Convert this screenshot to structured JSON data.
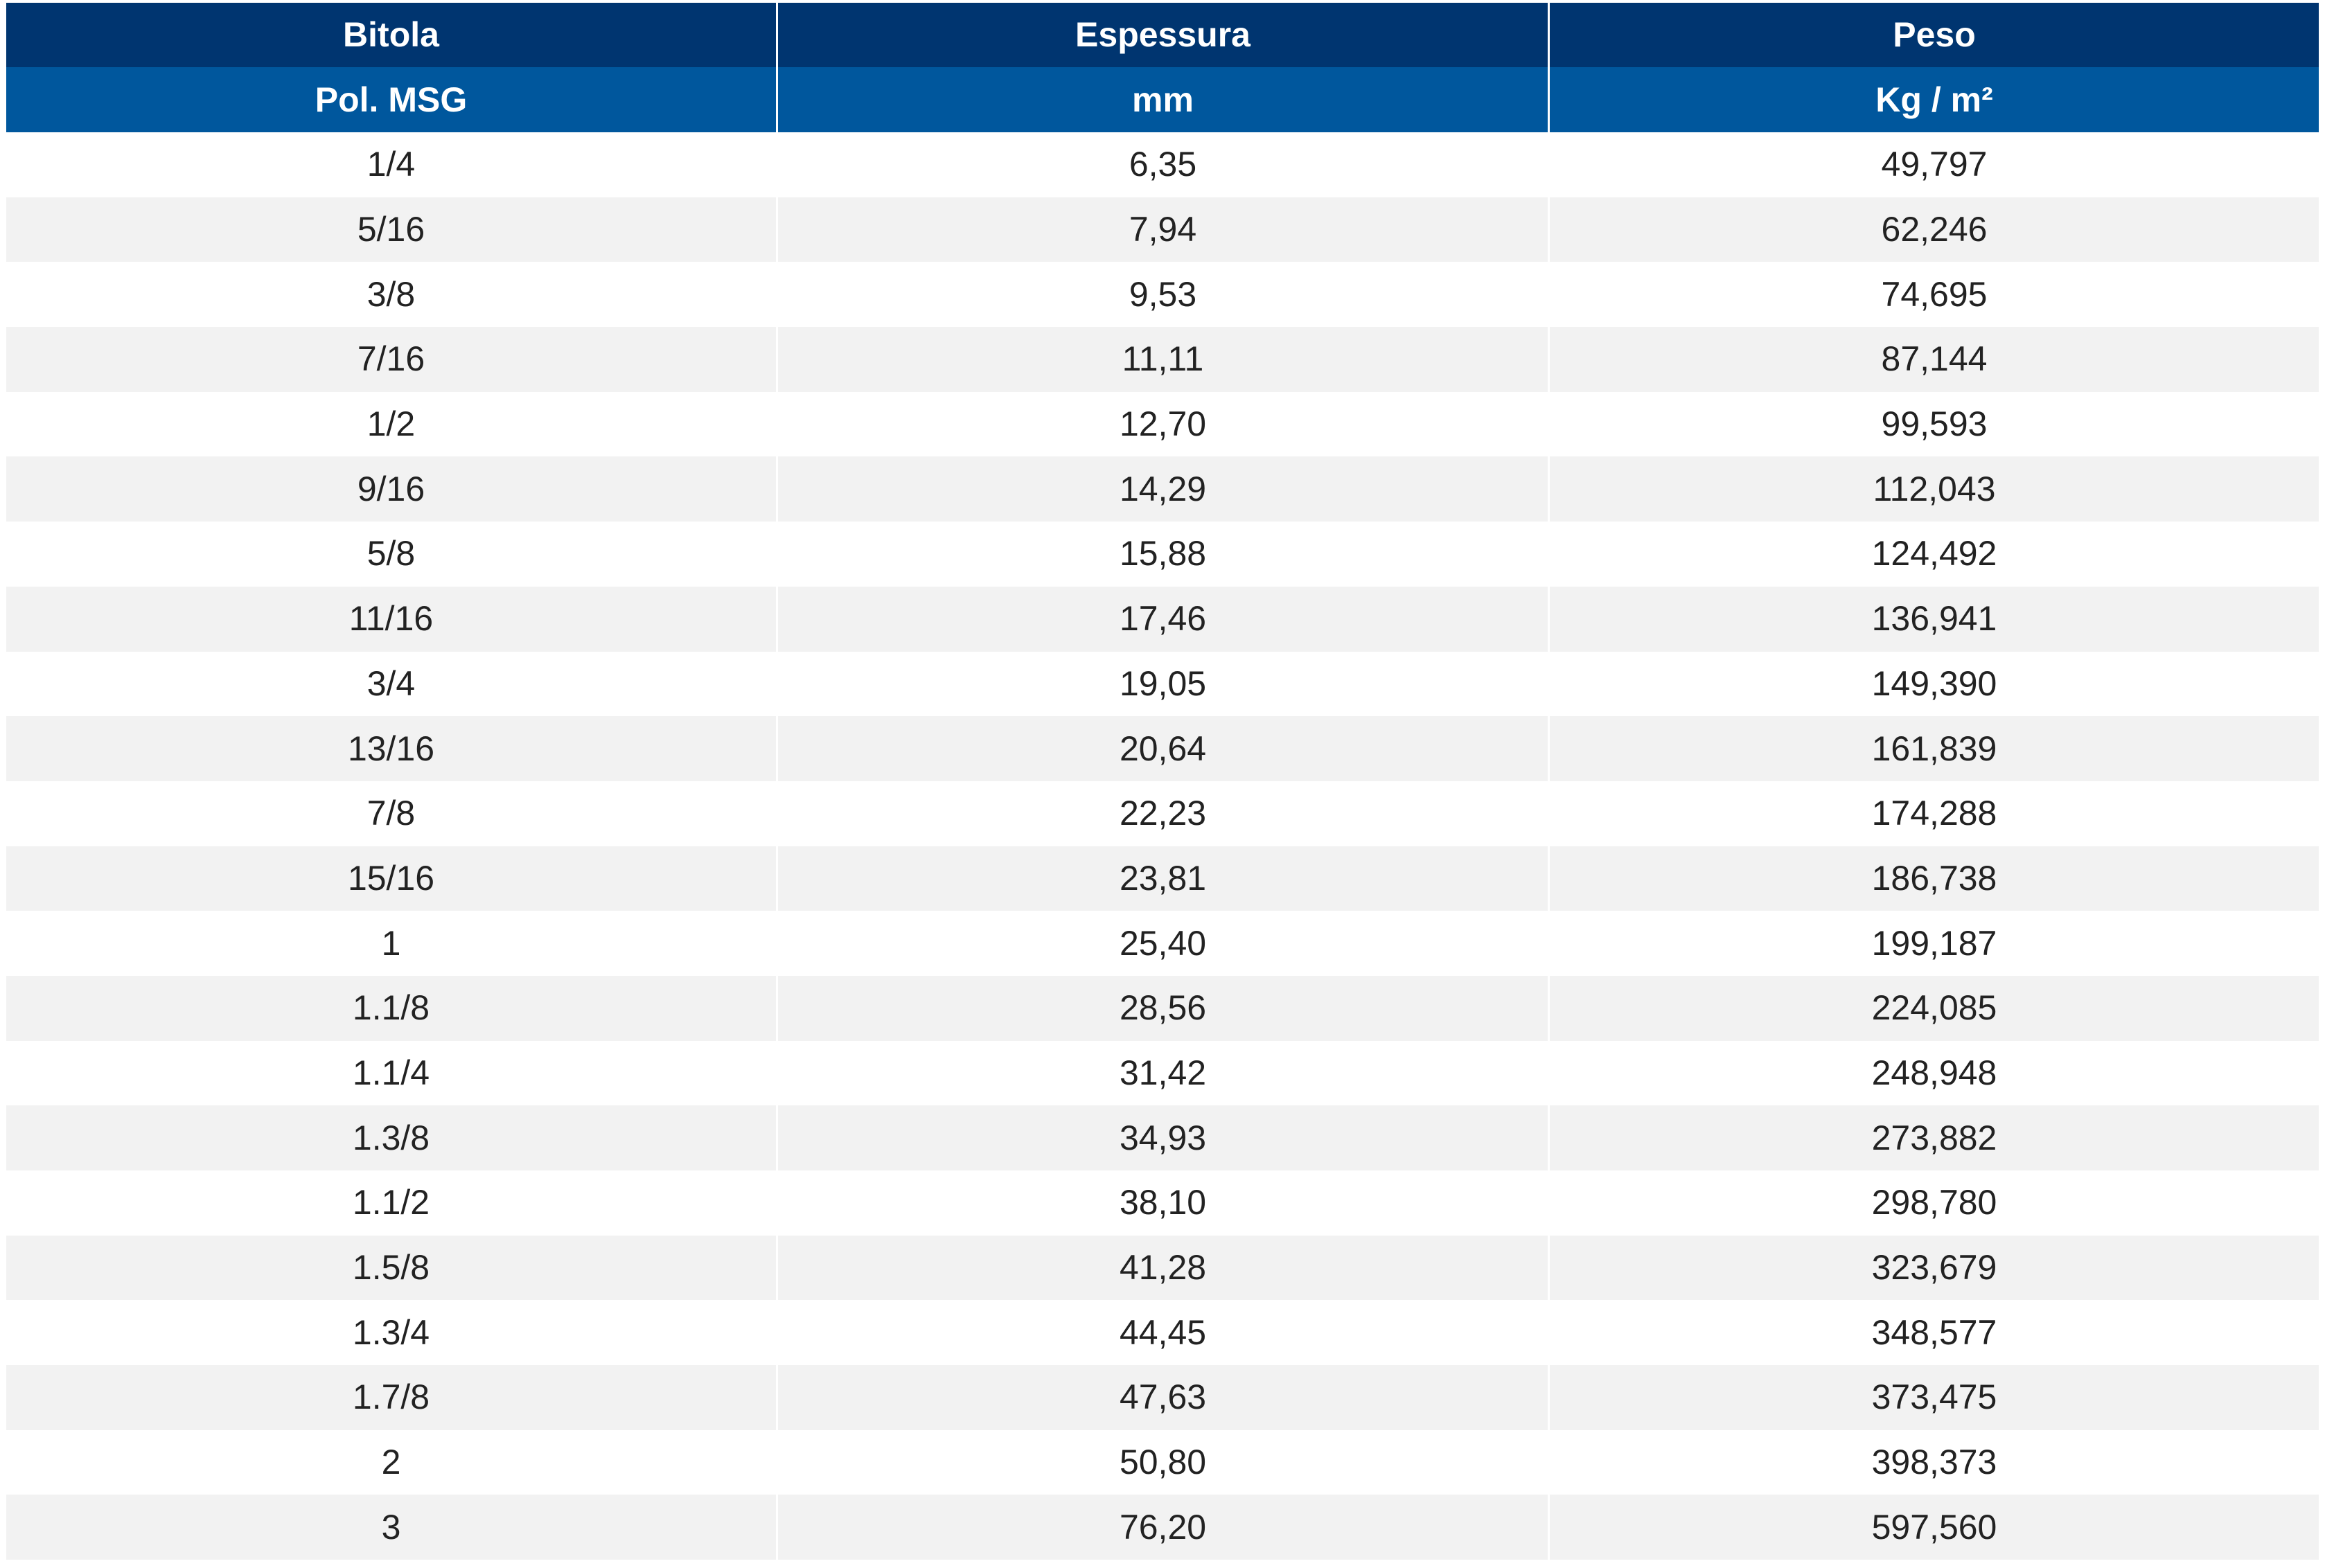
{
  "table": {
    "header_top": [
      "Bitola",
      "Espessura",
      "Peso"
    ],
    "header_sub": [
      "Pol. MSG",
      "mm",
      "Kg / m²"
    ],
    "rows": [
      [
        "1/4",
        "6,35",
        "49,797"
      ],
      [
        "5/16",
        "7,94",
        "62,246"
      ],
      [
        "3/8",
        "9,53",
        "74,695"
      ],
      [
        "7/16",
        "11,11",
        "87,144"
      ],
      [
        "1/2",
        "12,70",
        "99,593"
      ],
      [
        "9/16",
        "14,29",
        "112,043"
      ],
      [
        "5/8",
        "15,88",
        "124,492"
      ],
      [
        "11/16",
        "17,46",
        "136,941"
      ],
      [
        "3/4",
        "19,05",
        "149,390"
      ],
      [
        "13/16",
        "20,64",
        "161,839"
      ],
      [
        "7/8",
        "22,23",
        "174,288"
      ],
      [
        "15/16",
        "23,81",
        "186,738"
      ],
      [
        "1",
        "25,40",
        "199,187"
      ],
      [
        "1.1/8",
        "28,56",
        "224,085"
      ],
      [
        "1.1/4",
        "31,42",
        "248,948"
      ],
      [
        "1.3/8",
        "34,93",
        "273,882"
      ],
      [
        "1.1/2",
        "38,10",
        "298,780"
      ],
      [
        "1.5/8",
        "41,28",
        "323,679"
      ],
      [
        "1.3/4",
        "44,45",
        "348,577"
      ],
      [
        "1.7/8",
        "47,63",
        "373,475"
      ],
      [
        "2",
        "50,80",
        "398,373"
      ],
      [
        "3",
        "76,20",
        "597,560"
      ]
    ]
  },
  "colors": {
    "header_top_bg": "#003570",
    "header_sub_bg": "#00579d",
    "row_alt_bg": "#f2f2f2"
  }
}
